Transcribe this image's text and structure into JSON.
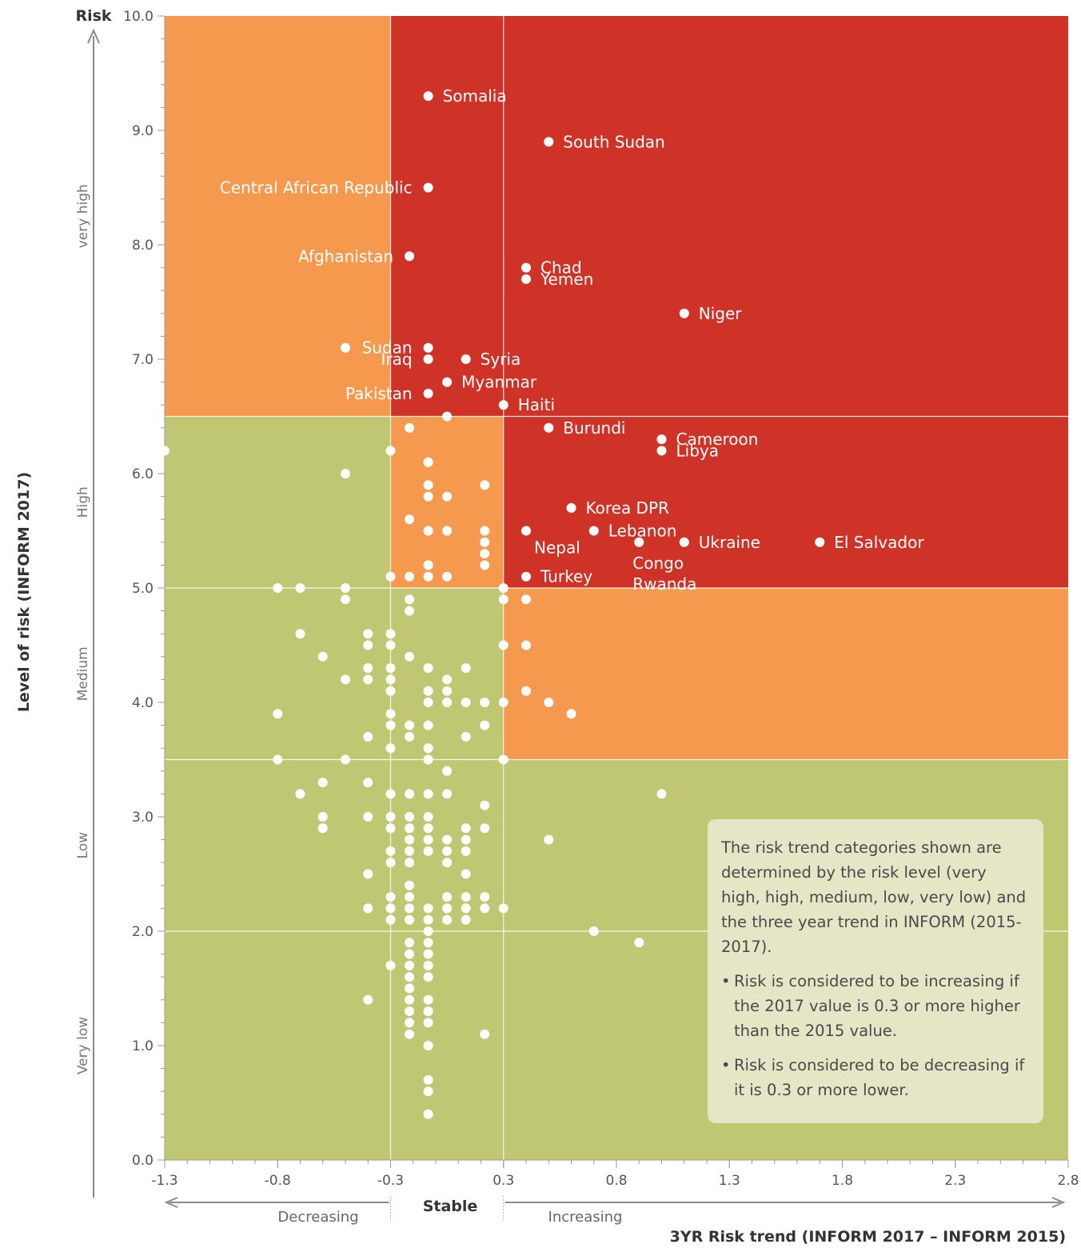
{
  "chart_data": {
    "type": "scatter",
    "ylabel_top": "Risk",
    "ylabel": "Level of risk (INFORM 2017)",
    "xlabel": "3YR Risk trend (INFORM 2017 – INFORM 2015)",
    "xlim": [
      -1.3,
      2.8
    ],
    "ylim": [
      0,
      10
    ],
    "x_ticks": [
      "-1.3",
      "-0.8",
      "-0.3",
      "0.3",
      "0.8",
      "1.3",
      "1.8",
      "2.3",
      "2.8"
    ],
    "x_tick_values": [
      -1.3,
      -0.8,
      -0.3,
      0.3,
      0.8,
      1.3,
      1.8,
      2.3,
      2.8
    ],
    "y_ticks": [
      "0.0",
      "1.0",
      "2.0",
      "3.0",
      "4.0",
      "5.0",
      "6.0",
      "7.0",
      "8.0",
      "9.0",
      "10.0"
    ],
    "risk_bands": [
      "Very low",
      "Low",
      "Medium",
      "High",
      "very high"
    ],
    "risk_band_bounds": [
      0,
      2,
      3.5,
      5,
      6.5,
      10
    ],
    "trend_labels": {
      "decreasing": "Decreasing",
      "stable": "Stable",
      "increasing": "Increasing"
    },
    "trend_thresholds": [
      -0.3,
      0.3
    ],
    "category_colors": {
      "increasing_risk": "#cf3328",
      "stable_risk": "#f5994f",
      "decreasing_or_low": "#bfc772"
    },
    "labeled_points": [
      {
        "name": "Somalia",
        "x": -0.1,
        "y": 9.3
      },
      {
        "name": "South Sudan",
        "x": 0.5,
        "y": 8.9
      },
      {
        "name": "Central African Republic",
        "x": -0.1,
        "y": 8.5
      },
      {
        "name": "Afghanistan",
        "x": -0.2,
        "y": 7.9
      },
      {
        "name": "Chad",
        "x": 0.4,
        "y": 7.8
      },
      {
        "name": "Yemen",
        "x": 0.4,
        "y": 7.7
      },
      {
        "name": "Niger",
        "x": 1.1,
        "y": 7.4
      },
      {
        "name": "Sudan",
        "x": -0.1,
        "y": 7.1
      },
      {
        "name": "Iraq",
        "x": -0.1,
        "y": 7.0
      },
      {
        "name": "Syria",
        "x": 0.1,
        "y": 7.0
      },
      {
        "name": "Myanmar",
        "x": 0.0,
        "y": 6.8
      },
      {
        "name": "Pakistan",
        "x": -0.1,
        "y": 6.7
      },
      {
        "name": "Haiti",
        "x": 0.3,
        "y": 6.6
      },
      {
        "name": "Burundi",
        "x": 0.5,
        "y": 6.4
      },
      {
        "name": "Cameroon",
        "x": 1.0,
        "y": 6.3
      },
      {
        "name": "Libya",
        "x": 1.0,
        "y": 6.2
      },
      {
        "name": "Korea DPR",
        "x": 0.6,
        "y": 5.7
      },
      {
        "name": "Lebanon",
        "x": 0.7,
        "y": 5.5
      },
      {
        "name": "Nepal",
        "x": 0.4,
        "y": 5.5
      },
      {
        "name": "Congo",
        "x": 0.9,
        "y": 5.4
      },
      {
        "name": "Ukraine",
        "x": 1.1,
        "y": 5.4
      },
      {
        "name": "El Salvador",
        "x": 1.7,
        "y": 5.4
      },
      {
        "name": "Turkey",
        "x": 0.4,
        "y": 5.1
      },
      {
        "name": "Rwanda",
        "x": 0.9,
        "y": 5.4
      }
    ],
    "unlabeled_points": [
      [
        -0.5,
        7.1
      ],
      [
        -1.3,
        6.2
      ],
      [
        -0.5,
        6.0
      ],
      [
        -0.2,
        6.4
      ],
      [
        0.0,
        6.5
      ],
      [
        -0.3,
        6.2
      ],
      [
        -0.1,
        6.1
      ],
      [
        -0.1,
        6.1
      ],
      [
        -0.1,
        5.9
      ],
      [
        0.2,
        5.9
      ],
      [
        -0.1,
        5.8
      ],
      [
        0.0,
        5.8
      ],
      [
        -0.2,
        5.6
      ],
      [
        -0.1,
        5.5
      ],
      [
        0.0,
        5.5
      ],
      [
        0.2,
        5.5
      ],
      [
        0.2,
        5.4
      ],
      [
        0.2,
        5.3
      ],
      [
        -0.1,
        5.2
      ],
      [
        0.2,
        5.2
      ],
      [
        -0.3,
        5.1
      ],
      [
        -0.2,
        5.1
      ],
      [
        -0.1,
        5.1
      ],
      [
        0.0,
        5.1
      ],
      [
        -0.8,
        5.0
      ],
      [
        -0.7,
        5.0
      ],
      [
        -0.5,
        5.0
      ],
      [
        0.3,
        5.0
      ],
      [
        -0.5,
        4.9
      ],
      [
        -0.2,
        4.9
      ],
      [
        0.3,
        4.9
      ],
      [
        0.4,
        4.9
      ],
      [
        -0.2,
        4.8
      ],
      [
        -0.7,
        4.6
      ],
      [
        -0.4,
        4.6
      ],
      [
        -0.3,
        4.6
      ],
      [
        -0.4,
        4.5
      ],
      [
        -0.3,
        4.5
      ],
      [
        0.3,
        4.5
      ],
      [
        0.4,
        4.5
      ],
      [
        -0.6,
        4.4
      ],
      [
        -0.2,
        4.4
      ],
      [
        -0.4,
        4.3
      ],
      [
        -0.3,
        4.3
      ],
      [
        -0.1,
        4.3
      ],
      [
        0.1,
        4.3
      ],
      [
        -0.5,
        4.2
      ],
      [
        -0.4,
        4.2
      ],
      [
        -0.3,
        4.2
      ],
      [
        0.0,
        4.2
      ],
      [
        -0.3,
        4.1
      ],
      [
        -0.1,
        4.1
      ],
      [
        0.0,
        4.1
      ],
      [
        0.4,
        4.1
      ],
      [
        -0.1,
        4.0
      ],
      [
        0.0,
        4.0
      ],
      [
        0.1,
        4.0
      ],
      [
        0.2,
        4.0
      ],
      [
        0.3,
        4.0
      ],
      [
        0.5,
        4.0
      ],
      [
        -0.8,
        3.9
      ],
      [
        -0.3,
        3.9
      ],
      [
        0.6,
        3.9
      ],
      [
        -0.3,
        3.8
      ],
      [
        -0.2,
        3.8
      ],
      [
        -0.1,
        3.8
      ],
      [
        0.2,
        3.8
      ],
      [
        -0.4,
        3.7
      ],
      [
        -0.2,
        3.7
      ],
      [
        0.1,
        3.7
      ],
      [
        -0.3,
        3.6
      ],
      [
        -0.1,
        3.6
      ],
      [
        -0.8,
        3.5
      ],
      [
        -0.5,
        3.5
      ],
      [
        -0.1,
        3.5
      ],
      [
        0.3,
        3.5
      ],
      [
        0.0,
        3.4
      ],
      [
        -0.6,
        3.3
      ],
      [
        -0.4,
        3.3
      ],
      [
        -0.7,
        3.2
      ],
      [
        -0.3,
        3.2
      ],
      [
        -0.2,
        3.2
      ],
      [
        -0.1,
        3.2
      ],
      [
        0.0,
        3.2
      ],
      [
        1.0,
        3.2
      ],
      [
        0.2,
        3.1
      ],
      [
        -0.6,
        3.0
      ],
      [
        -0.4,
        3.0
      ],
      [
        -0.3,
        3.0
      ],
      [
        -0.2,
        3.0
      ],
      [
        -0.1,
        3.0
      ],
      [
        -0.6,
        2.9
      ],
      [
        -0.3,
        2.9
      ],
      [
        -0.2,
        2.9
      ],
      [
        -0.1,
        2.9
      ],
      [
        0.1,
        2.9
      ],
      [
        0.2,
        2.9
      ],
      [
        -0.2,
        2.8
      ],
      [
        -0.1,
        2.8
      ],
      [
        0.0,
        2.8
      ],
      [
        0.1,
        2.8
      ],
      [
        0.5,
        2.8
      ],
      [
        -0.3,
        2.7
      ],
      [
        -0.2,
        2.7
      ],
      [
        -0.1,
        2.7
      ],
      [
        0.0,
        2.7
      ],
      [
        0.1,
        2.7
      ],
      [
        -0.3,
        2.6
      ],
      [
        -0.2,
        2.6
      ],
      [
        0.0,
        2.6
      ],
      [
        -0.4,
        2.5
      ],
      [
        0.1,
        2.5
      ],
      [
        -0.2,
        2.4
      ],
      [
        -0.3,
        2.3
      ],
      [
        -0.2,
        2.3
      ],
      [
        0.0,
        2.3
      ],
      [
        0.1,
        2.3
      ],
      [
        0.2,
        2.3
      ],
      [
        -0.4,
        2.2
      ],
      [
        -0.3,
        2.2
      ],
      [
        -0.2,
        2.2
      ],
      [
        -0.1,
        2.2
      ],
      [
        0.0,
        2.2
      ],
      [
        0.1,
        2.2
      ],
      [
        0.2,
        2.2
      ],
      [
        0.3,
        2.2
      ],
      [
        -0.3,
        2.1
      ],
      [
        -0.2,
        2.1
      ],
      [
        -0.1,
        2.1
      ],
      [
        0.0,
        2.1
      ],
      [
        0.1,
        2.1
      ],
      [
        -0.1,
        2.0
      ],
      [
        0.7,
        2.0
      ],
      [
        -0.2,
        1.9
      ],
      [
        -0.1,
        1.9
      ],
      [
        0.9,
        1.9
      ],
      [
        -0.2,
        1.8
      ],
      [
        -0.1,
        1.8
      ],
      [
        -0.3,
        1.7
      ],
      [
        -0.2,
        1.7
      ],
      [
        -0.1,
        1.7
      ],
      [
        -0.2,
        1.6
      ],
      [
        -0.1,
        1.6
      ],
      [
        -0.2,
        1.5
      ],
      [
        -0.4,
        1.4
      ],
      [
        -0.2,
        1.4
      ],
      [
        -0.1,
        1.4
      ],
      [
        -0.2,
        1.3
      ],
      [
        -0.1,
        1.3
      ],
      [
        -0.2,
        1.2
      ],
      [
        -0.1,
        1.2
      ],
      [
        -0.2,
        1.1
      ],
      [
        0.2,
        1.1
      ],
      [
        -0.1,
        1.0
      ],
      [
        -0.1,
        0.7
      ],
      [
        -0.1,
        0.6
      ],
      [
        -0.1,
        0.4
      ]
    ]
  },
  "note": {
    "intro": "The risk trend categories shown are determined by the risk level (very high, high, medium, low, very low) and the three year trend in INFORM (2015-2017).",
    "bullets": [
      "Risk is considered to be increasing if the 2017 value is 0.3 or more higher than the 2015 value.",
      "Risk is considered to be decreasing if it is 0.3 or more lower."
    ]
  }
}
